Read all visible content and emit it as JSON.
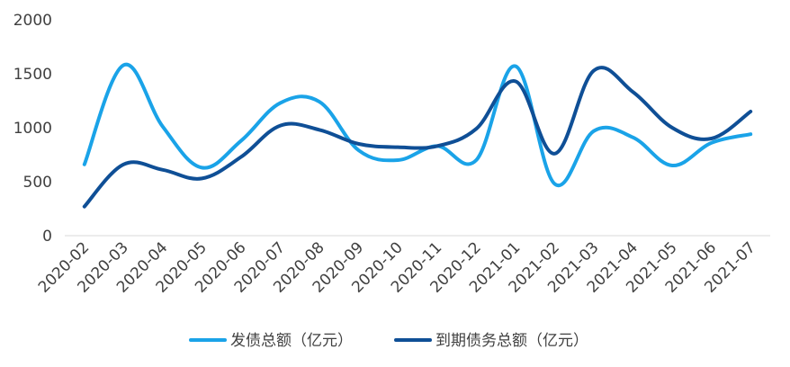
{
  "chart_data": {
    "type": "line",
    "title": "",
    "xlabel": "",
    "ylabel": "",
    "ylim": [
      0,
      2000
    ],
    "yticks": [
      0,
      500,
      1000,
      1500,
      2000
    ],
    "grid": false,
    "legend_position": "bottom",
    "categories": [
      "2020-02",
      "2020-03",
      "2020-04",
      "2020-05",
      "2020-06",
      "2020-07",
      "2020-08",
      "2020-09",
      "2020-10",
      "2020-11",
      "2020-12",
      "2021-01",
      "2021-02",
      "2021-03",
      "2021-04",
      "2021-05",
      "2021-06",
      "2021-07"
    ],
    "series": [
      {
        "name": "发债总额（亿元）",
        "color": "#1aa3e8",
        "values": [
          660,
          1580,
          1010,
          630,
          880,
          1230,
          1240,
          790,
          700,
          830,
          700,
          1570,
          480,
          970,
          910,
          650,
          860,
          940
        ]
      },
      {
        "name": "到期债务总额（亿元）",
        "color": "#0f4f96",
        "values": [
          270,
          660,
          610,
          530,
          730,
          1020,
          980,
          850,
          820,
          830,
          990,
          1430,
          760,
          1530,
          1330,
          1000,
          900,
          1150
        ]
      }
    ]
  }
}
